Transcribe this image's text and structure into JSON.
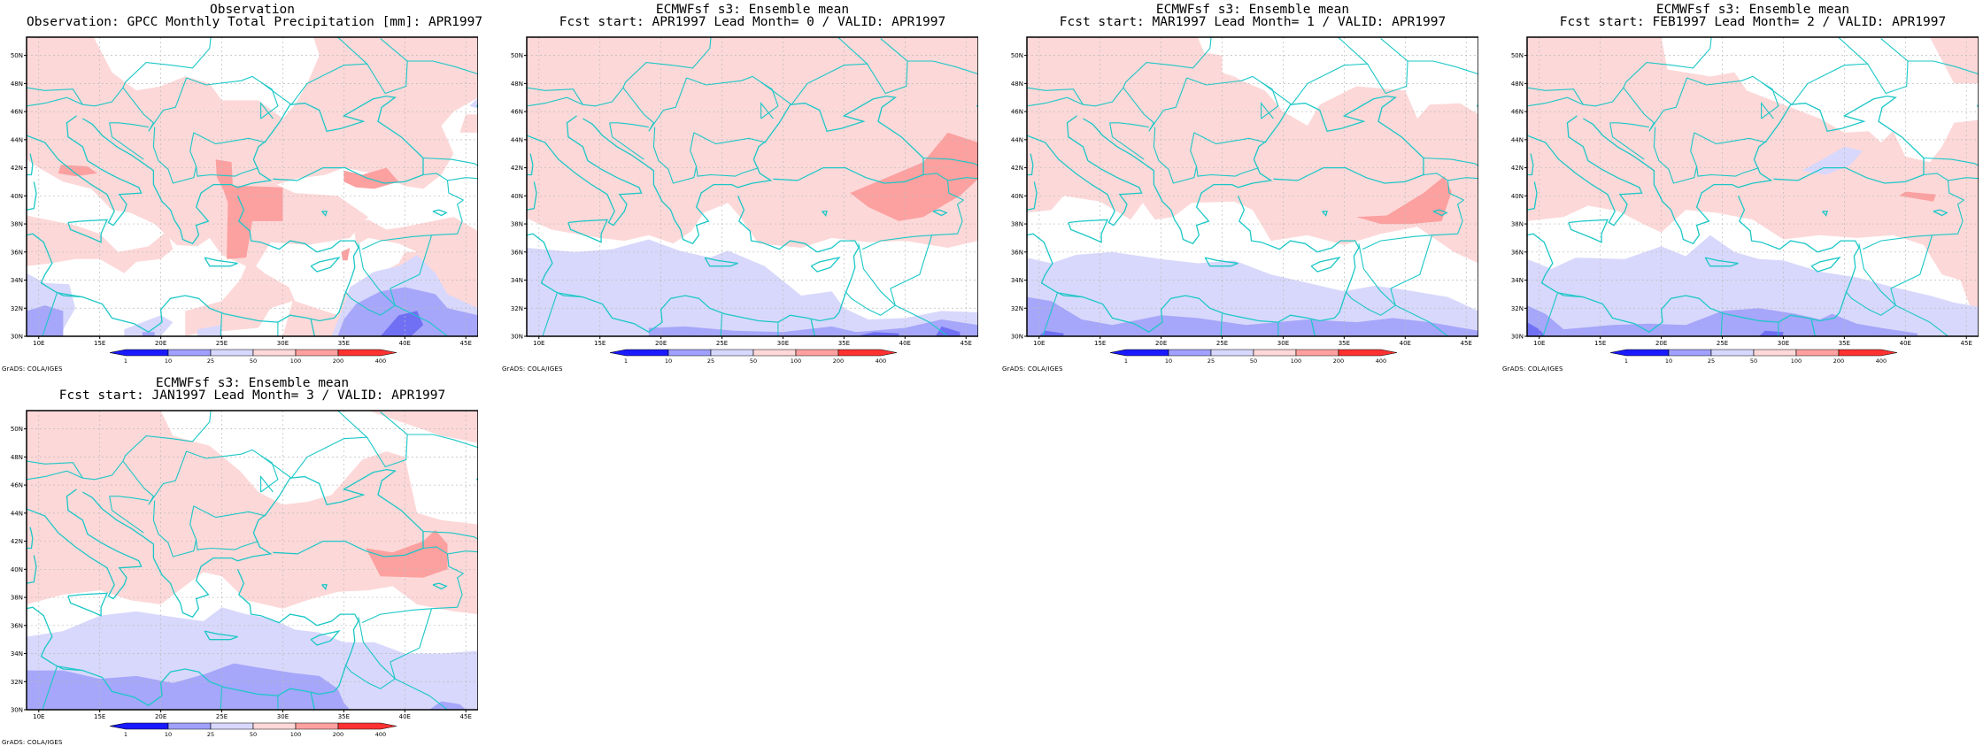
{
  "panels": [
    {
      "title1": "Observation",
      "title2": "Observation: GPCC Monthly Total Precipitation [mm]: APR1997"
    },
    {
      "title1": "ECMWFsf s3: Ensemble mean",
      "title2": "Fcst start: APR1997  Lead Month= 0 / VALID: APR1997"
    },
    {
      "title1": "ECMWFsf s3: Ensemble mean",
      "title2": "Fcst start: MAR1997  Lead Month= 1 / VALID: APR1997"
    },
    {
      "title1": "ECMWFsf s3: Ensemble mean",
      "title2": "Fcst start: FEB1997  Lead Month= 2 / VALID: APR1997"
    },
    {
      "title1": "ECMWFsf s3: Ensemble mean",
      "title2": "Fcst start: JAN1997  Lead Month= 3 / VALID: APR1997"
    }
  ],
  "lat_labels": [
    "50N",
    "48N",
    "46N",
    "44N",
    "42N",
    "40N",
    "38N",
    "36N",
    "34N",
    "32N",
    "30N"
  ],
  "lon_labels": [
    "10E",
    "15E",
    "20E",
    "25E",
    "30E",
    "35E",
    "40E",
    "45E"
  ],
  "colorbar_labels": [
    "1",
    "10",
    "25",
    "50",
    "100",
    "200",
    "400"
  ],
  "colors": [
    "#1a1aff",
    "#a0a0ff",
    "#d8d8ff",
    "#ffd8d8",
    "#ffa0a0",
    "#ff3232"
  ],
  "credit": "GrADS: COLA/IGES"
}
